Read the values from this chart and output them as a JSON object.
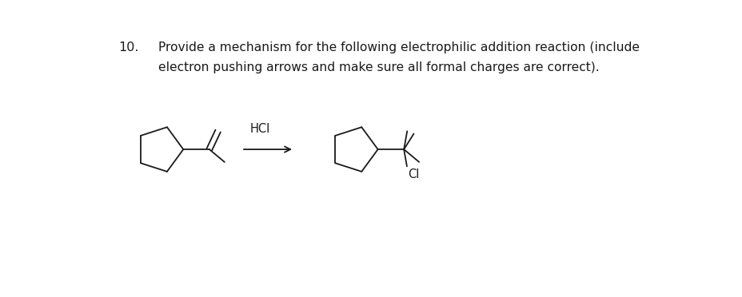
{
  "title_number": "10.",
  "title_text_line1": "Provide a mechanism for the following electrophilic addition reaction (include",
  "title_text_line2": "electron pushing arrows and make sure all formal charges are correct).",
  "reagent_label": "HCI",
  "product_label": "CI",
  "background_color": "#ffffff",
  "line_color": "#1a1a1a",
  "text_color": "#1a1a1a",
  "font_size_title": 11.2,
  "font_size_number": 11.5,
  "font_size_label": 10.5,
  "lw": 1.3
}
